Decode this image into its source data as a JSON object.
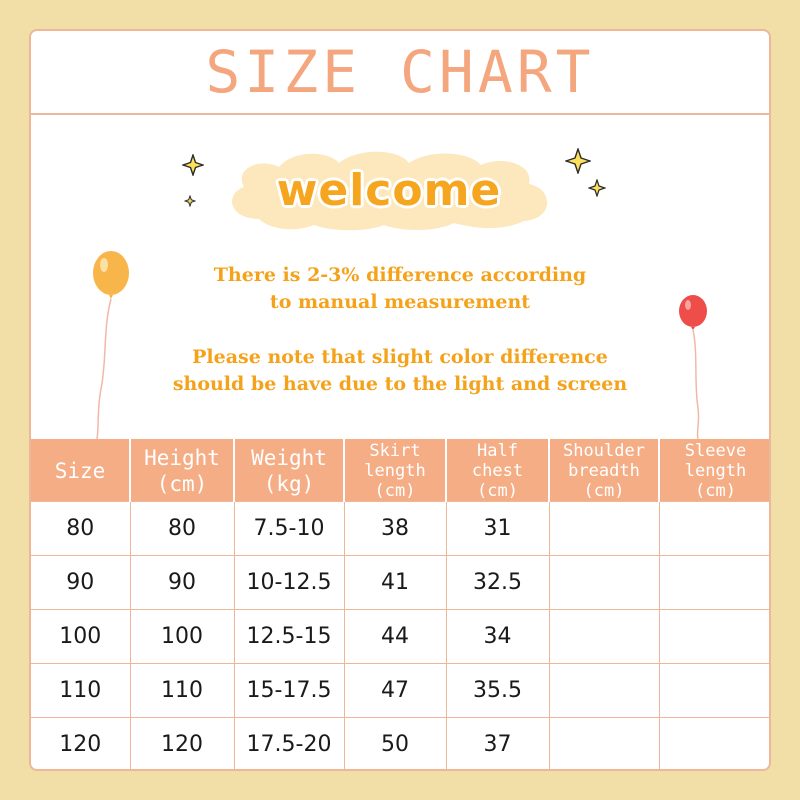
{
  "title": "SIZE CHART",
  "welcome": "welcome",
  "note1": {
    "line1": "There is 2-3% difference according",
    "line2": "to manual measurement"
  },
  "note2": {
    "line1": "Please note that slight color difference",
    "line2": "should be have due to the light and screen"
  },
  "table": {
    "headers": [
      {
        "line1": "Size",
        "line2": "",
        "line3": ""
      },
      {
        "line1": "Height",
        "line2": "(cm)",
        "line3": ""
      },
      {
        "line1": "Weight",
        "line2": "(kg)",
        "line3": ""
      },
      {
        "line1": "Skirt",
        "line2": "length",
        "line3": "(cm)"
      },
      {
        "line1": "Half",
        "line2": "chest",
        "line3": "(cm)"
      },
      {
        "line1": "Shoulder",
        "line2": "breadth",
        "line3": "(cm)"
      },
      {
        "line1": "Sleeve",
        "line2": "length",
        "line3": "(cm)"
      }
    ],
    "rows": [
      [
        "80",
        "80",
        "7.5-10",
        "38",
        "31",
        "",
        ""
      ],
      [
        "90",
        "90",
        "10-12.5",
        "41",
        "32.5",
        "",
        ""
      ],
      [
        "100",
        "100",
        "12.5-15",
        "44",
        "34",
        "",
        ""
      ],
      [
        "110",
        "110",
        "15-17.5",
        "47",
        "35.5",
        "",
        ""
      ],
      [
        "120",
        "120",
        "17.5-20",
        "50",
        "37",
        "",
        ""
      ]
    ]
  },
  "colors": {
    "background": "#f2dfa7",
    "accent": "#f5ad86",
    "title": "#f4a77f",
    "welcome_text": "#f6a51e",
    "cloud": "#fde8bd",
    "note_text": "#f5a21b",
    "balloon_left": "#f8b54a",
    "balloon_right": "#ee4d4a"
  }
}
